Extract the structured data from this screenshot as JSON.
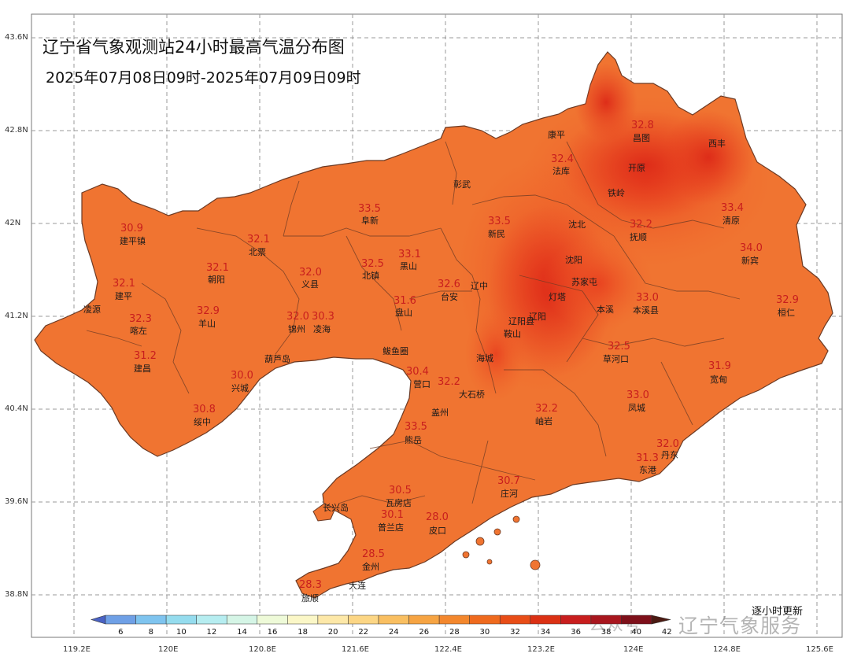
{
  "title": "辽宁省气象观测站24小时最高气温分布图",
  "subtitle": "2025年07月08日09时-2025年07月09日09时",
  "update_note": "逐小时更新",
  "watermark": {
    "left": "公众号",
    "right": "辽宁气象服务"
  },
  "lat_labels": [
    "43.6N",
    "42.8N",
    "42N",
    "41.2N",
    "40.4N",
    "39.6N",
    "38.8N"
  ],
  "lon_labels": [
    "119.2E",
    "120E",
    "120.8E",
    "121.6E",
    "122.4E",
    "123.2E",
    "124E",
    "124.8E",
    "125.6E"
  ],
  "legend": {
    "ticks": [
      "6",
      "8",
      "10",
      "12",
      "14",
      "16",
      "18",
      "20",
      "22",
      "24",
      "26",
      "28",
      "30",
      "32",
      "34",
      "36",
      "38",
      "40",
      "42"
    ],
    "colors": [
      "#6fa0e6",
      "#7fc4ef",
      "#95dcee",
      "#b6edf0",
      "#d5f5e6",
      "#eefad8",
      "#fbf7c7",
      "#fde8a8",
      "#fcd685",
      "#f9bf61",
      "#f6a443",
      "#f3872d",
      "#ef6a1e",
      "#e84d17",
      "#db3114",
      "#c81e1e",
      "#a8161e",
      "#7e101a"
    ],
    "low_arrow_color": "#4a62c4",
    "high_arrow_color": "#4b1a12"
  },
  "colors": {
    "land_base": "#f07431",
    "land_warm": "#f0622a",
    "land_hot": "#e8401f",
    "land_hottest": "#dd2a18",
    "border": "#5a3a2a",
    "temp_text": "#c81e1e"
  },
  "places": [
    {
      "name": "康平"
    },
    {
      "name": "昌图"
    },
    {
      "name": "西丰"
    },
    {
      "name": "法库"
    },
    {
      "name": "开原"
    },
    {
      "name": "彰武"
    },
    {
      "name": "铁岭"
    },
    {
      "name": "阜新"
    },
    {
      "name": "建平镇"
    },
    {
      "name": "新民"
    },
    {
      "name": "沈北"
    },
    {
      "name": "清原"
    },
    {
      "name": "北票"
    },
    {
      "name": "抚顺"
    },
    {
      "name": "黑山"
    },
    {
      "name": "北镇"
    },
    {
      "name": "沈阳"
    },
    {
      "name": "新宾"
    },
    {
      "name": "朝阳"
    },
    {
      "name": "义县"
    },
    {
      "name": "辽中"
    },
    {
      "name": "苏家屯"
    },
    {
      "name": "建平"
    },
    {
      "name": "台安"
    },
    {
      "name": "灯塔"
    },
    {
      "name": "凌源"
    },
    {
      "name": "盘山"
    },
    {
      "name": "本溪"
    },
    {
      "name": "本溪县"
    },
    {
      "name": "桓仁"
    },
    {
      "name": "羊山"
    },
    {
      "name": "辽阳县"
    },
    {
      "name": "喀左"
    },
    {
      "name": "锦州"
    },
    {
      "name": "凌海"
    },
    {
      "name": "辽阳"
    },
    {
      "name": "鞍山"
    },
    {
      "name": "鲅鱼圈"
    },
    {
      "name": "海城"
    },
    {
      "name": "葫芦岛"
    },
    {
      "name": "建昌"
    },
    {
      "name": "草河口"
    },
    {
      "name": "兴城"
    },
    {
      "name": "宽甸"
    },
    {
      "name": "营口"
    },
    {
      "name": "大石桥"
    },
    {
      "name": "盖州"
    },
    {
      "name": "凤城"
    },
    {
      "name": "绥中"
    },
    {
      "name": "岫岩"
    },
    {
      "name": "熊岳"
    },
    {
      "name": "丹东"
    },
    {
      "name": "东港"
    },
    {
      "name": "庄河"
    },
    {
      "name": "长兴岛"
    },
    {
      "name": "瓦房店"
    },
    {
      "name": "普兰店"
    },
    {
      "name": "皮口"
    },
    {
      "name": "金州"
    },
    {
      "name": "大连"
    },
    {
      "name": "旅顺"
    }
  ],
  "temps": [
    "32.8",
    "33.5",
    "30.9",
    "32.4",
    "32.1",
    "32.5",
    "33.4",
    "32.1",
    "32.2",
    "34.0",
    "33.5",
    "32.0",
    "33.1",
    "32.1",
    "32.9",
    "32.0",
    "30.3",
    "31.6",
    "32.6",
    "32.3",
    "33.0",
    "31.2",
    "32.5",
    "32.9",
    "30.0",
    "31.9",
    "30.4",
    "32.2",
    "30.8",
    "33.0",
    "33.5",
    "32.2",
    "32.0",
    "31.3",
    "30.7",
    "30.5",
    "30.1",
    "28.0",
    "28.5",
    "28.3"
  ]
}
